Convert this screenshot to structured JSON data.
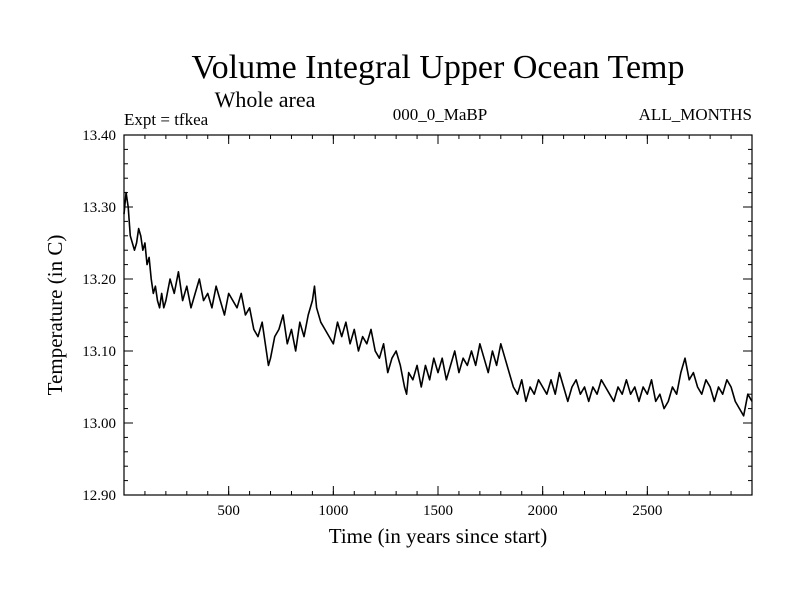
{
  "chart_data": {
    "type": "line",
    "title": "Volume Integral Upper Ocean Temp",
    "subtitle": "Whole area",
    "header_left": "Expt = tfkea",
    "header_center": "000_0_MaBP",
    "header_right": "ALL_MONTHS",
    "xlabel": "Time (in years since start)",
    "ylabel": "Temperature (in C)",
    "xlim": [
      0,
      3000
    ],
    "ylim": [
      12.9,
      13.4
    ],
    "x_ticks": [
      500,
      1000,
      1500,
      2000,
      2500
    ],
    "x_tick_labels": [
      "500",
      "1000",
      "1500",
      "2000",
      "2500"
    ],
    "y_ticks": [
      12.9,
      13.0,
      13.1,
      13.2,
      13.3,
      13.4
    ],
    "y_tick_labels": [
      "12.90",
      "13.00",
      "13.10",
      "13.20",
      "13.30",
      "13.40"
    ],
    "x_minor_step": 100,
    "y_minor_step": 0.02,
    "grid": false,
    "legend": "none",
    "line_color": "#000000",
    "series": [
      {
        "x": [
          0,
          10,
          20,
          30,
          40,
          50,
          60,
          70,
          80,
          90,
          100,
          110,
          120,
          130,
          140,
          150,
          160,
          170,
          180,
          190,
          200,
          220,
          240,
          260,
          280,
          300,
          320,
          340,
          360,
          380,
          400,
          420,
          440,
          460,
          480,
          500,
          520,
          540,
          560,
          580,
          600,
          620,
          640,
          660,
          680,
          690,
          700,
          720,
          740,
          760,
          780,
          800,
          820,
          840,
          860,
          880,
          900,
          910,
          920,
          940,
          960,
          980,
          1000,
          1020,
          1040,
          1060,
          1080,
          1100,
          1120,
          1140,
          1160,
          1180,
          1200,
          1220,
          1240,
          1260,
          1280,
          1300,
          1320,
          1340,
          1350,
          1360,
          1380,
          1400,
          1420,
          1440,
          1460,
          1480,
          1500,
          1520,
          1540,
          1560,
          1580,
          1600,
          1620,
          1640,
          1660,
          1680,
          1700,
          1720,
          1740,
          1760,
          1780,
          1800,
          1820,
          1840,
          1860,
          1880,
          1900,
          1920,
          1940,
          1960,
          1980,
          2000,
          2020,
          2040,
          2060,
          2080,
          2100,
          2120,
          2140,
          2160,
          2180,
          2200,
          2220,
          2240,
          2260,
          2280,
          2300,
          2320,
          2340,
          2360,
          2380,
          2400,
          2420,
          2440,
          2460,
          2480,
          2500,
          2520,
          2540,
          2560,
          2580,
          2600,
          2620,
          2640,
          2660,
          2680,
          2700,
          2720,
          2740,
          2760,
          2780,
          2800,
          2820,
          2840,
          2860,
          2880,
          2900,
          2920,
          2940,
          2960,
          2980,
          3000
        ],
        "values": [
          13.29,
          13.32,
          13.3,
          13.26,
          13.25,
          13.24,
          13.25,
          13.27,
          13.26,
          13.24,
          13.25,
          13.22,
          13.23,
          13.2,
          13.18,
          13.19,
          13.17,
          13.16,
          13.18,
          13.16,
          13.17,
          13.2,
          13.18,
          13.21,
          13.17,
          13.19,
          13.16,
          13.18,
          13.2,
          13.17,
          13.18,
          13.16,
          13.19,
          13.17,
          13.15,
          13.18,
          13.17,
          13.16,
          13.18,
          13.15,
          13.16,
          13.13,
          13.12,
          13.14,
          13.1,
          13.08,
          13.09,
          13.12,
          13.13,
          13.15,
          13.11,
          13.13,
          13.1,
          13.14,
          13.12,
          13.15,
          13.17,
          13.19,
          13.16,
          13.14,
          13.13,
          13.12,
          13.11,
          13.14,
          13.12,
          13.14,
          13.11,
          13.13,
          13.1,
          13.12,
          13.11,
          13.13,
          13.1,
          13.09,
          13.11,
          13.07,
          13.09,
          13.1,
          13.08,
          13.05,
          13.04,
          13.07,
          13.06,
          13.08,
          13.05,
          13.08,
          13.06,
          13.09,
          13.07,
          13.09,
          13.06,
          13.08,
          13.1,
          13.07,
          13.09,
          13.08,
          13.1,
          13.08,
          13.11,
          13.09,
          13.07,
          13.1,
          13.08,
          13.11,
          13.09,
          13.07,
          13.05,
          13.04,
          13.06,
          13.03,
          13.05,
          13.04,
          13.06,
          13.05,
          13.04,
          13.06,
          13.04,
          13.07,
          13.05,
          13.03,
          13.05,
          13.06,
          13.04,
          13.05,
          13.03,
          13.05,
          13.04,
          13.06,
          13.05,
          13.04,
          13.03,
          13.05,
          13.04,
          13.06,
          13.04,
          13.05,
          13.03,
          13.05,
          13.04,
          13.06,
          13.03,
          13.04,
          13.02,
          13.03,
          13.05,
          13.04,
          13.07,
          13.09,
          13.06,
          13.07,
          13.05,
          13.04,
          13.06,
          13.05,
          13.03,
          13.05,
          13.04,
          13.06,
          13.05,
          13.03,
          13.02,
          13.01,
          13.04,
          13.03
        ]
      }
    ]
  }
}
